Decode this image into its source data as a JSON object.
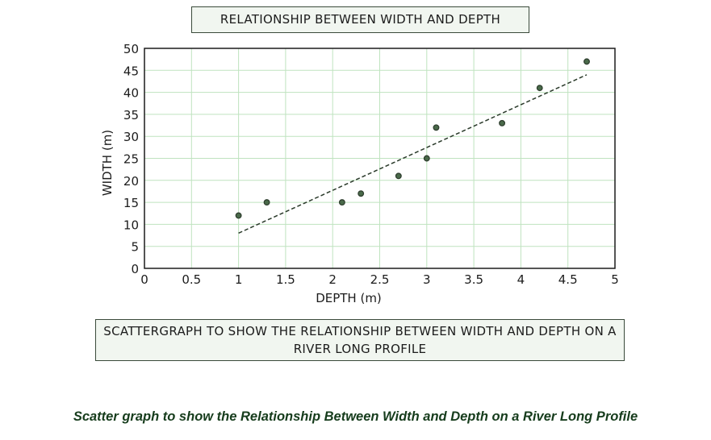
{
  "chart_data": {
    "type": "scatter",
    "title": "RELATIONSHIP BETWEEN WIDTH AND DEPTH",
    "xlabel": "DEPTH (m)",
    "ylabel": "WIDTH (m)",
    "xlim": [
      0,
      5
    ],
    "ylim": [
      0,
      50
    ],
    "xticks": [
      "0",
      "0.5",
      "1",
      "1.5",
      "2",
      "2.5",
      "3",
      "3.5",
      "4",
      "4.5",
      "5"
    ],
    "yticks": [
      "0",
      "5",
      "10",
      "15",
      "20",
      "25",
      "30",
      "35",
      "40",
      "45",
      "50"
    ],
    "grid": true,
    "points": [
      {
        "x": 1.0,
        "y": 12
      },
      {
        "x": 1.3,
        "y": 15
      },
      {
        "x": 2.1,
        "y": 15
      },
      {
        "x": 2.3,
        "y": 17
      },
      {
        "x": 2.7,
        "y": 21
      },
      {
        "x": 3.0,
        "y": 25
      },
      {
        "x": 3.1,
        "y": 32
      },
      {
        "x": 3.8,
        "y": 33
      },
      {
        "x": 4.2,
        "y": 41
      },
      {
        "x": 4.7,
        "y": 47
      }
    ],
    "trendline": {
      "style": "dashed",
      "from": {
        "x": 1.0,
        "y": 8
      },
      "to": {
        "x": 4.7,
        "y": 44
      }
    },
    "caption": "SCATTERGRAPH TO SHOW THE RELATIONSHIP BETWEEN WIDTH AND DEPTH ON A RIVER LONG PROFILE",
    "colors": {
      "grid": "#bfe3bf",
      "point": "#2f3f2f",
      "trendline": "#2a3a2a",
      "box_bg": "#f1f6f0"
    }
  },
  "footer": "Scatter graph to show the Relationship Between Width and Depth on a River Long Profile"
}
